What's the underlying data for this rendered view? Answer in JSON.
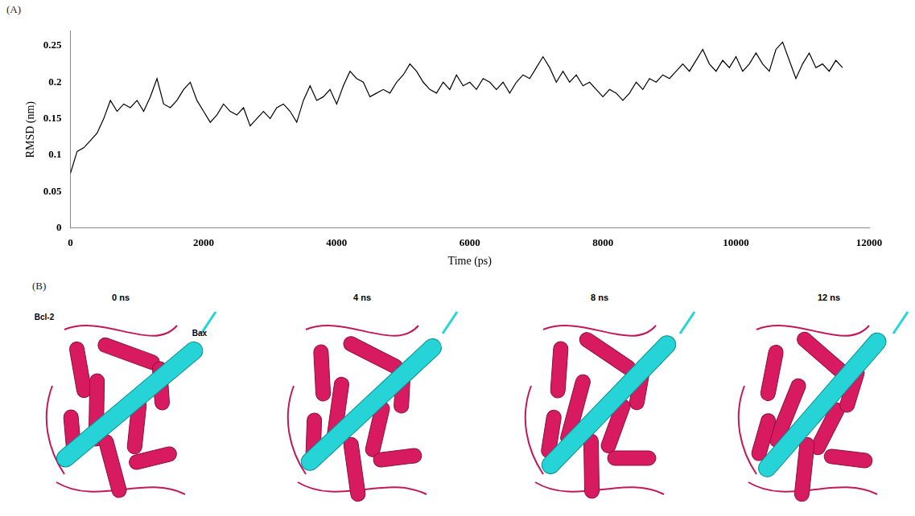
{
  "panel_labels": [
    "(A)",
    "(B)"
  ],
  "chart_data": {
    "type": "line",
    "x_label": "Time (ps)",
    "y_label": "RMSD (nm)",
    "x": [
      0,
      100,
      200,
      300,
      400,
      500,
      600,
      700,
      800,
      900,
      1000,
      1100,
      1200,
      1300,
      1400,
      1500,
      1600,
      1700,
      1800,
      1900,
      2000,
      2100,
      2200,
      2300,
      2400,
      2500,
      2600,
      2700,
      2800,
      2900,
      3000,
      3100,
      3200,
      3300,
      3400,
      3500,
      3600,
      3700,
      3800,
      3900,
      4000,
      4100,
      4200,
      4300,
      4400,
      4500,
      4600,
      4700,
      4800,
      4900,
      5000,
      5100,
      5200,
      5300,
      5400,
      5500,
      5600,
      5700,
      5800,
      5900,
      6000,
      6100,
      6200,
      6300,
      6400,
      6500,
      6600,
      6700,
      6800,
      6900,
      7000,
      7100,
      7200,
      7300,
      7400,
      7500,
      7600,
      7700,
      7800,
      7900,
      8000,
      8100,
      8200,
      8300,
      8400,
      8500,
      8600,
      8700,
      8800,
      8900,
      9000,
      9100,
      9200,
      9300,
      9400,
      9500,
      9600,
      9700,
      9800,
      9900,
      10000,
      10100,
      10200,
      10300,
      10400,
      10500,
      10600,
      10700,
      10800,
      10900,
      11000,
      11100,
      11200,
      11300,
      11400,
      11500,
      11600
    ],
    "values": [
      0.075,
      0.105,
      0.11,
      0.12,
      0.13,
      0.15,
      0.175,
      0.16,
      0.17,
      0.165,
      0.175,
      0.16,
      0.18,
      0.205,
      0.17,
      0.165,
      0.175,
      0.19,
      0.2,
      0.175,
      0.16,
      0.145,
      0.155,
      0.17,
      0.16,
      0.155,
      0.165,
      0.14,
      0.15,
      0.16,
      0.15,
      0.165,
      0.17,
      0.16,
      0.145,
      0.175,
      0.195,
      0.175,
      0.18,
      0.19,
      0.17,
      0.195,
      0.215,
      0.205,
      0.2,
      0.18,
      0.185,
      0.19,
      0.185,
      0.2,
      0.21,
      0.225,
      0.215,
      0.2,
      0.19,
      0.185,
      0.2,
      0.19,
      0.21,
      0.195,
      0.2,
      0.19,
      0.205,
      0.2,
      0.19,
      0.2,
      0.185,
      0.2,
      0.21,
      0.205,
      0.22,
      0.235,
      0.22,
      0.2,
      0.215,
      0.2,
      0.21,
      0.195,
      0.2,
      0.19,
      0.18,
      0.19,
      0.185,
      0.175,
      0.185,
      0.2,
      0.19,
      0.205,
      0.2,
      0.21,
      0.205,
      0.215,
      0.225,
      0.215,
      0.23,
      0.245,
      0.225,
      0.215,
      0.23,
      0.22,
      0.235,
      0.215,
      0.225,
      0.24,
      0.225,
      0.215,
      0.245,
      0.255,
      0.23,
      0.205,
      0.225,
      0.24,
      0.22,
      0.225,
      0.215,
      0.23,
      0.22
    ],
    "color": "#000000",
    "xlim": [
      0,
      12000
    ],
    "xticks": [
      0,
      2000,
      4000,
      6000,
      8000,
      10000,
      12000
    ],
    "ylim": [
      0,
      0.27
    ],
    "yticks": [
      0,
      0.05,
      0.1,
      0.15,
      0.2,
      0.25
    ],
    "grid": false
  },
  "snapshots": [
    {
      "time": "0 ns",
      "labels": [
        "Bcl-2",
        "Bax"
      ]
    },
    {
      "time": "4 ns",
      "labels": []
    },
    {
      "time": "8 ns",
      "labels": []
    },
    {
      "time": "12 ns",
      "labels": []
    }
  ]
}
